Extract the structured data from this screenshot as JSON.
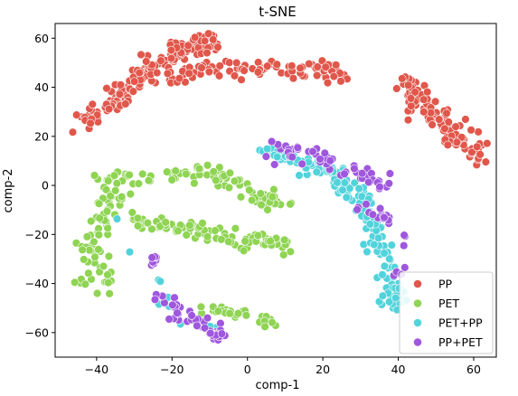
{
  "chart_data": {
    "type": "scatter",
    "title": "t-SNE",
    "xlabel": "comp-1",
    "ylabel": "comp-2",
    "xlim": [
      -51,
      66
    ],
    "ylim": [
      -70,
      66
    ],
    "xticks": [
      -40,
      -20,
      0,
      20,
      40,
      60
    ],
    "yticks": [
      -60,
      -40,
      -20,
      0,
      20,
      40,
      60
    ],
    "grid": false,
    "legend_position": "lower-right",
    "series": [
      {
        "name": "PP",
        "color": "#e1574b",
        "clusters": [
          {
            "points": [
              [
                -44,
                27
              ],
              [
                -40,
                30
              ],
              [
                -36,
                34
              ],
              [
                -33,
                38
              ],
              [
                -30,
                42
              ],
              [
                -27,
                46
              ],
              [
                -23,
                50
              ],
              [
                -19,
                54
              ],
              [
                -15,
                56
              ],
              [
                -11,
                58
              ],
              [
                -9,
                59
              ]
            ],
            "n": 170,
            "spread": 2.2
          },
          {
            "points": [
              [
                -22,
                44
              ],
              [
                -17,
                46
              ],
              [
                -12,
                47
              ],
              [
                -6,
                47
              ],
              [
                0,
                48
              ],
              [
                6,
                48
              ],
              [
                12,
                46
              ],
              [
                17,
                48
              ],
              [
                22,
                48
              ],
              [
                26,
                42
              ]
            ],
            "n": 100,
            "spread": 1.6
          },
          {
            "points": [
              [
                42,
                43
              ],
              [
                44,
                38
              ],
              [
                47,
                33
              ],
              [
                51,
                27
              ],
              [
                54,
                22
              ],
              [
                58,
                16
              ],
              [
                61,
                12
              ]
            ],
            "n": 110,
            "spread": 2.3
          }
        ]
      },
      {
        "name": "PET",
        "color": "#8fd453",
        "clusters": [
          {
            "points": [
              [
                -38,
                2
              ],
              [
                -33,
                3
              ],
              [
                -26,
                3
              ],
              [
                -20,
                4
              ],
              [
                -14,
                5
              ],
              [
                -9,
                5
              ],
              [
                -5,
                2
              ],
              [
                0,
                -2
              ],
              [
                4,
                -5
              ],
              [
                9,
                -8
              ]
            ],
            "n": 90,
            "spread": 1.8
          },
          {
            "points": [
              [
                -43,
                -30
              ],
              [
                -41,
                -22
              ],
              [
                -38,
                -10
              ],
              [
                -36,
                -2
              ],
              [
                -38,
                -30
              ],
              [
                -38,
                -42
              ]
            ],
            "n": 70,
            "spread": 2.2
          },
          {
            "points": [
              [
                -33,
                -14
              ],
              [
                -26,
                -16
              ],
              [
                -20,
                -17
              ],
              [
                -14,
                -18
              ],
              [
                -8,
                -20
              ],
              [
                -2,
                -22
              ],
              [
                4,
                -23
              ],
              [
                10,
                -24
              ]
            ],
            "n": 90,
            "spread": 1.6
          },
          {
            "points": [
              [
                -45,
                -42
              ],
              [
                -44,
                -38
              ]
            ],
            "n": 5,
            "spread": 0.8
          },
          {
            "points": [
              [
                -12,
                -50
              ],
              [
                -7,
                -51
              ],
              [
                -2,
                -52
              ],
              [
                3,
                -54
              ],
              [
                6,
                -56
              ]
            ],
            "n": 30,
            "spread": 1.0
          }
        ]
      },
      {
        "name": "PET+PP",
        "color": "#52d3db",
        "clusters": [
          {
            "points": [
              [
                4,
                15
              ],
              [
                10,
                12
              ],
              [
                16,
                8
              ],
              [
                22,
                5
              ],
              [
                26,
                0
              ],
              [
                29,
                -6
              ],
              [
                32,
                -12
              ],
              [
                34,
                -20
              ],
              [
                36,
                -28
              ],
              [
                38,
                -36
              ],
              [
                39,
                -44
              ],
              [
                40,
                -49
              ]
            ],
            "n": 170,
            "spread": 1.9
          },
          {
            "points": [
              [
                -25,
                -6
              ],
              [
                -30,
                -9
              ],
              [
                -37,
                -16
              ],
              [
                -25,
                -35
              ],
              [
                -19,
                -58
              ],
              [
                7,
                -59
              ]
            ],
            "n": 10,
            "spread": 1.0
          }
        ]
      },
      {
        "name": "PP+PET",
        "color": "#9f57de",
        "clusters": [
          {
            "points": [
              [
                8,
                15
              ],
              [
                13,
                14
              ],
              [
                18,
                11
              ],
              [
                24,
                8
              ],
              [
                30,
                5
              ],
              [
                34,
                2
              ],
              [
                37,
                3
              ]
            ],
            "n": 55,
            "spread": 1.7
          },
          {
            "points": [
              [
                30,
                -9
              ],
              [
                34,
                -11
              ],
              [
                36,
                -14
              ],
              [
                43,
                -22
              ]
            ],
            "n": 20,
            "spread": 1.3
          },
          {
            "points": [
              [
                -24,
                -30
              ],
              [
                -26,
                -33
              ]
            ],
            "n": 8,
            "spread": 1.0
          },
          {
            "points": [
              [
                -24,
                -42
              ],
              [
                -21,
                -49
              ],
              [
                -16,
                -54
              ],
              [
                -12,
                -57
              ],
              [
                -9,
                -60
              ],
              [
                -7,
                -62
              ]
            ],
            "n": 55,
            "spread": 1.3
          },
          {
            "points": [
              [
                40,
                -36
              ],
              [
                42,
                -34
              ]
            ],
            "n": 5,
            "spread": 1.0
          }
        ]
      }
    ]
  }
}
